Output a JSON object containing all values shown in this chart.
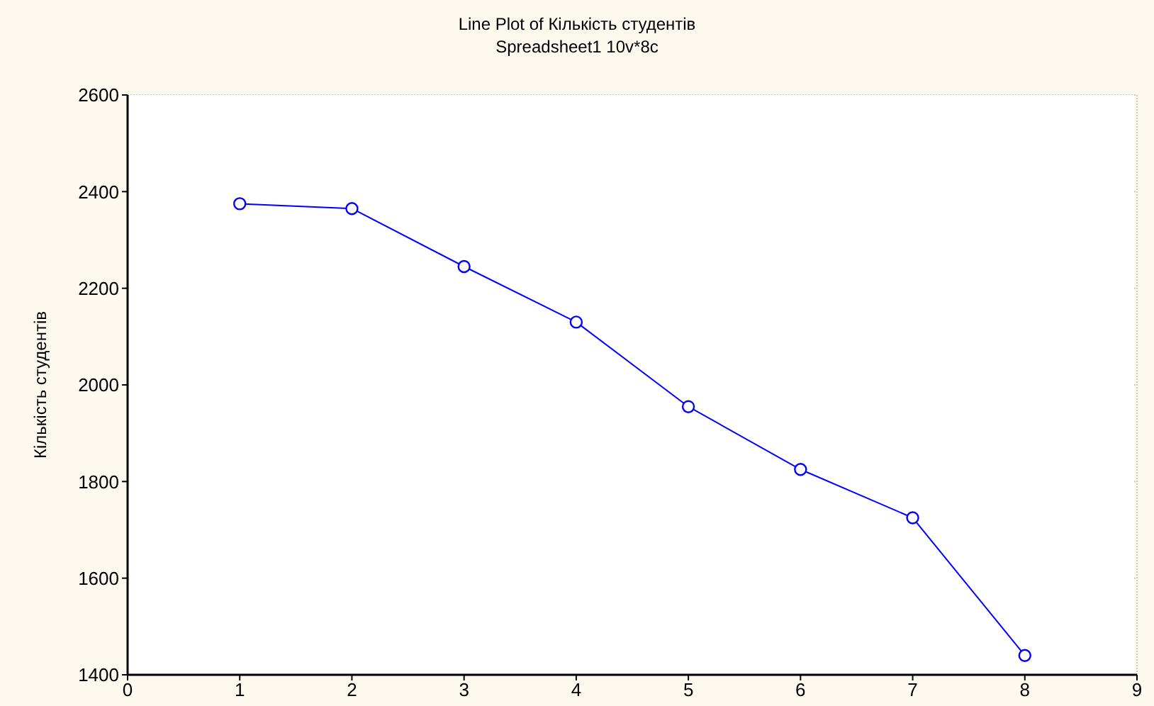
{
  "chart_data": {
    "type": "line",
    "title": "Line Plot of Кількість студентів",
    "subtitle": "Spreadsheet1 10v*8c",
    "ylabel": "Кількість студентів",
    "x": [
      1,
      2,
      3,
      4,
      5,
      6,
      7,
      8
    ],
    "series": [
      {
        "color": "#0000ff",
        "values": [
          2375,
          2365,
          2245,
          2130,
          1955,
          1825,
          1725,
          1440
        ]
      }
    ],
    "xlim": [
      0,
      9
    ],
    "xticks": [
      0,
      1,
      2,
      3,
      4,
      5,
      6,
      7,
      8,
      9
    ],
    "ylim": [
      1400,
      2600
    ],
    "yticks": [
      1400,
      1600,
      1800,
      2000,
      2200,
      2400,
      2600
    ],
    "grid": true,
    "marker": "circle",
    "line_style": "solid"
  }
}
